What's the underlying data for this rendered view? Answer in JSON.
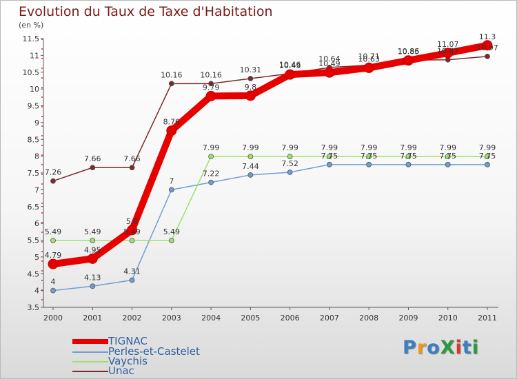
{
  "title": "Evolution du Taux de Taxe d'Habitation",
  "subtitle": "(en %)",
  "logo": {
    "text": "ProXiti",
    "colors": [
      "#3a7fc0",
      "#e89a1a",
      "#3a7fc0",
      "#2b9a3c",
      "#d23a2a",
      "#3a7fc0",
      "#2b9a3c"
    ]
  },
  "chart_data": {
    "type": "line",
    "x": [
      "2000",
      "2001",
      "2002",
      "2003",
      "2004",
      "2005",
      "2006",
      "2007",
      "2008",
      "2009",
      "2010",
      "2011"
    ],
    "ylim": [
      3.5,
      11.5
    ],
    "yticks": [
      "3.5",
      "4",
      "4.5",
      "5",
      "5.5",
      "6",
      "6.5",
      "7",
      "7.5",
      "8",
      "8.5",
      "9",
      "9.5",
      "10",
      "10.5",
      "11",
      "11.5"
    ],
    "grid": false,
    "legend_position": "bottom-left",
    "series": [
      {
        "name": "TIGNAC",
        "color": "#e60000",
        "values": [
          4.79,
          4.95,
          5.8,
          8.76,
          9.79,
          9.8,
          10.43,
          10.49,
          10.63,
          10.85,
          11.07,
          11.3
        ],
        "labels": [
          "4.79",
          "4.95",
          "5.8",
          "8.76",
          "9.79",
          "9.8",
          "10.43",
          "10.49",
          "10.63",
          "10.85",
          "11.07",
          "11.3"
        ]
      },
      {
        "name": "Perles-et-Castelet",
        "color": "#6e9ecf",
        "values": [
          4,
          4.13,
          4.31,
          7,
          7.22,
          7.44,
          7.52,
          7.75,
          7.75,
          7.75,
          7.75,
          7.75
        ],
        "labels": [
          "4",
          "4.13",
          "4.31",
          "7",
          "7.22",
          "7.44",
          "7.52",
          "7.75",
          "7.75",
          "7.75",
          "7.75",
          "7.75"
        ]
      },
      {
        "name": "Vaychis",
        "color": "#9ee06a",
        "values": [
          5.49,
          5.49,
          5.49,
          5.49,
          7.99,
          7.99,
          7.99,
          7.99,
          7.99,
          7.99,
          7.99,
          7.99
        ],
        "labels": [
          "5.49",
          "5.49",
          "5.49",
          "5.49",
          "7.99",
          "7.99",
          "7.99",
          "7.99",
          "7.99",
          "7.99",
          "7.99",
          "7.99"
        ]
      },
      {
        "name": "Unac",
        "color": "#7a2a2a",
        "values": [
          7.26,
          7.66,
          7.66,
          10.16,
          10.16,
          10.31,
          10.46,
          10.64,
          10.71,
          10.86,
          10.87,
          10.97
        ],
        "labels": [
          "7.26",
          "7.66",
          "7.66",
          "10.16",
          "10.16",
          "10.31",
          "10.46",
          "10.64",
          "10.71",
          "10.86",
          "10.87",
          "10.97"
        ]
      }
    ]
  }
}
